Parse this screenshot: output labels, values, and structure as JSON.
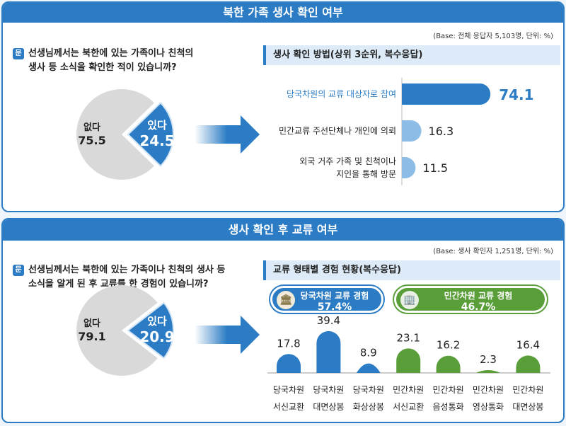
{
  "colors": {
    "primary": "#2b7cc4",
    "light": "#8cbde6",
    "green": "#5a9e3a",
    "gray": "#d9d9d9"
  },
  "top": {
    "title": "북한 가족 생사 확인 여부",
    "base": "(Base: 전체 응답자 5,103명, 단위: %)",
    "q_icon": "문",
    "question_line1": "선생님께서는 북한에 있는 가족이나 친척의",
    "question_line2": "생사 등 소식을 확인한 적이 있습니까?",
    "subtitle": "생사 확인 방법(상위 3순위, 복수응답)"
  },
  "bottom": {
    "title": "생사 확인 후 교류 여부",
    "base": "(Base: 생사 확인자 1,251명, 단위: %)",
    "q_icon": "문",
    "question_line1": "선생님께서는 북한에 있는 가족이나 친척의 생사 등",
    "question_line2": "소식을 알게 된 후 교류를 한 경험이 있습니까?",
    "subtitle": "교류 형태별 경험 현황(복수응답)",
    "pills": [
      {
        "label": "당국차원 교류 경험",
        "value": "57.4%",
        "icon": "government-building-icon"
      },
      {
        "label": "민간차원 교류 경험",
        "value": "46.7%",
        "icon": "office-building-icon"
      }
    ]
  },
  "chart_data": [
    {
      "type": "pie",
      "slices": [
        {
          "label": "없다",
          "value": 75.5
        },
        {
          "label": "있다",
          "value": 24.5
        }
      ]
    },
    {
      "type": "bar",
      "orientation": "horizontal",
      "categories": [
        "당국차원의 교류 대상자로 참여",
        "민간교류 주선단체나 개인에 의뢰",
        "외국 거주 가족 및 친척이나 지인을 통해 방문"
      ],
      "values": [
        74.1,
        16.3,
        11.5
      ]
    },
    {
      "type": "pie",
      "slices": [
        {
          "label": "없다",
          "value": 79.1
        },
        {
          "label": "있다",
          "value": 20.9
        }
      ]
    },
    {
      "type": "bar",
      "orientation": "vertical",
      "categories": [
        "당국차원 서신교환",
        "당국차원 대면상봉",
        "당국차원 화상상봉",
        "민간차원 서신교환",
        "민간차원 음성통화",
        "민간차원 영상통화",
        "민간차원 대면상봉"
      ],
      "values": [
        17.8,
        39.4,
        8.9,
        23.1,
        16.2,
        2.3,
        16.4
      ],
      "groups": [
        "당국",
        "당국",
        "당국",
        "민간",
        "민간",
        "민간",
        "민간"
      ]
    }
  ]
}
